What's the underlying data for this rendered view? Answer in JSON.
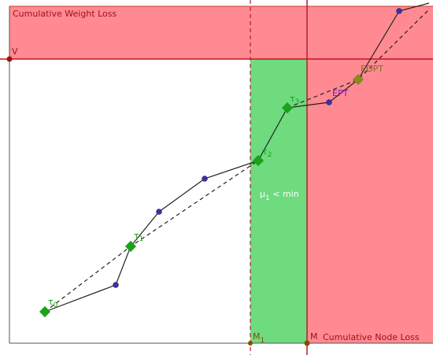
{
  "title": "Cumulative Weight Loss",
  "x_axis_label": "Cumulative Node Loss",
  "y_marker": "V",
  "x_markers": {
    "m": "M",
    "m1": {
      "base": "M",
      "sub": "1"
    }
  },
  "region_label": {
    "base": "μ",
    "sub": "1",
    "rest": " < min"
  },
  "points": {
    "tau0": {
      "base": "τ",
      "sub": "0"
    },
    "tau1": {
      "base": "τ",
      "sub": "1"
    },
    "tau2": {
      "base": "τ",
      "sub": "2"
    },
    "tau3": {
      "base": "τ",
      "sub": "3"
    },
    "ept": "EPT",
    "eopt": "EOPT"
  }
}
